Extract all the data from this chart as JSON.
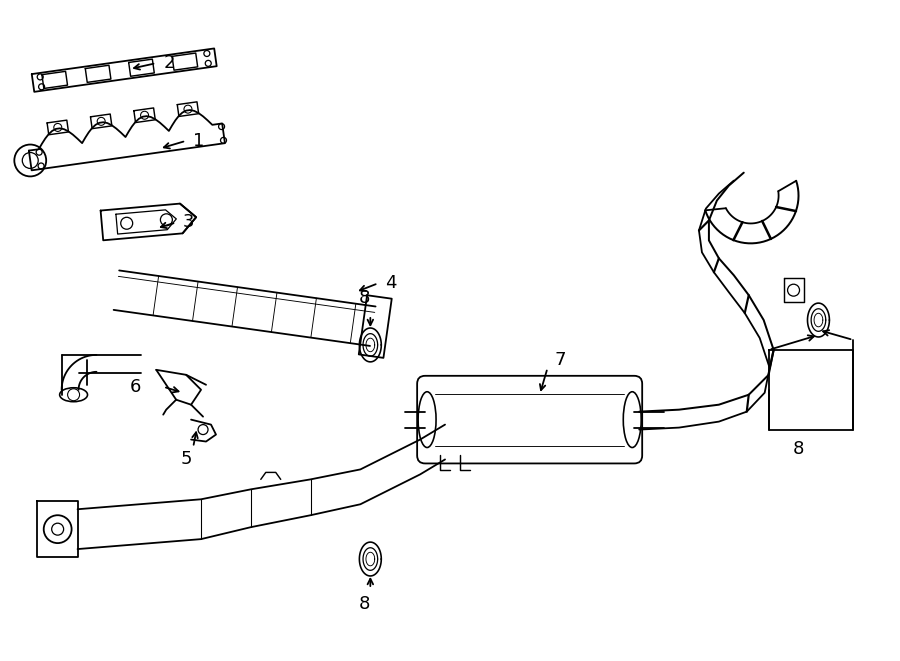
{
  "bg_color": "#ffffff",
  "line_color": "#000000",
  "lw": 1.3,
  "fig_width": 9.0,
  "fig_height": 6.61,
  "dpi": 100,
  "label_fontsize": 13
}
